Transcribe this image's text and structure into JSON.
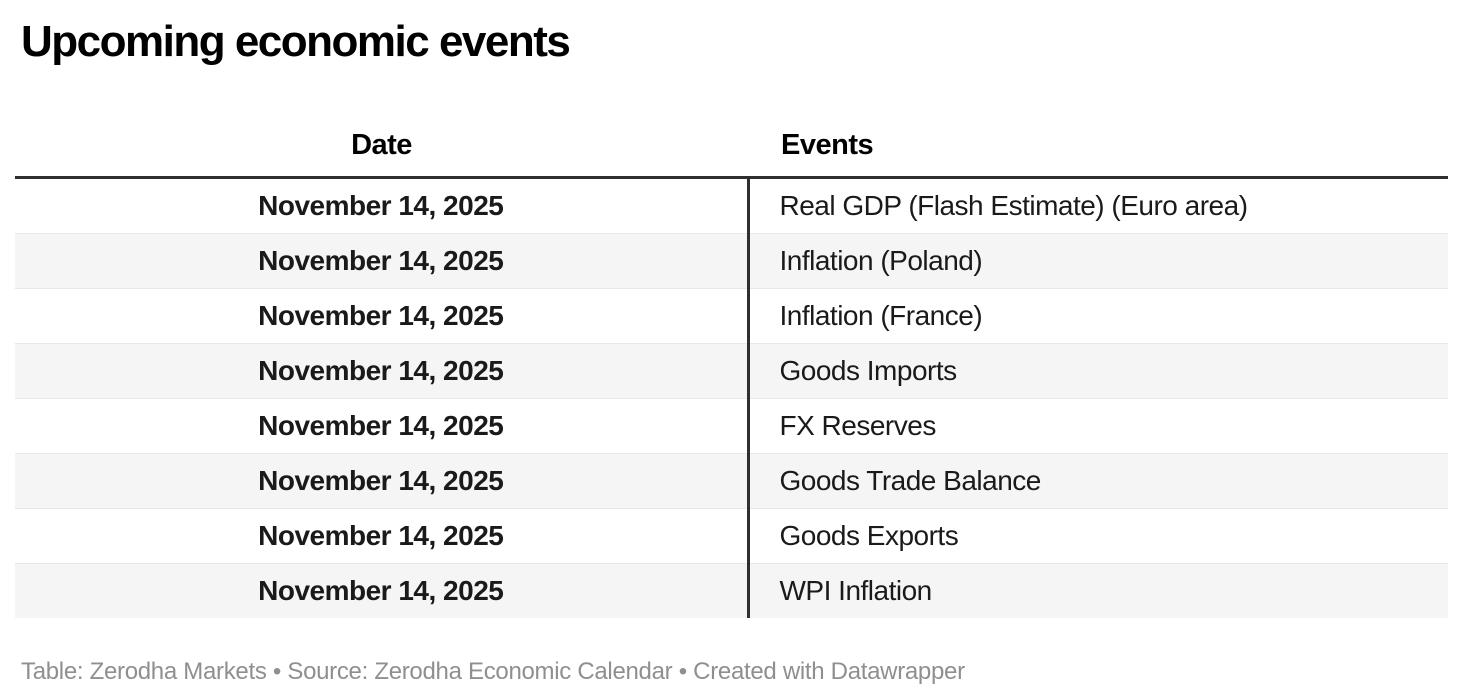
{
  "title": "Upcoming economic events",
  "chart_data": {
    "type": "table",
    "title": "Upcoming economic events",
    "columns": [
      "Date",
      "Events"
    ],
    "rows": [
      [
        "November 14, 2025",
        "Real GDP (Flash Estimate) (Euro area)"
      ],
      [
        "November 14, 2025",
        "Inflation (Poland)"
      ],
      [
        "November 14, 2025",
        "Inflation (France)"
      ],
      [
        "November 14, 2025",
        "Goods Imports"
      ],
      [
        "November 14, 2025",
        "FX Reserves"
      ],
      [
        "November 14, 2025",
        "Goods Trade Balance"
      ],
      [
        "November 14, 2025",
        "Goods Exports"
      ],
      [
        "November 14, 2025",
        "WPI Inflation"
      ]
    ],
    "layout_hints": {
      "date_column_align": "center",
      "events_column_align": "left",
      "striped_rows": true,
      "header_rule": true,
      "column_divider": true
    }
  },
  "footer": {
    "attribution": "Table: Zerodha Markets • Source: Zerodha Economic Calendar • Created with Datawrapper"
  },
  "colors": {
    "accent": "#2f2f2f",
    "stripe": "#f5f5f5",
    "row_border": "#e8e8e8",
    "footer_text": "#8f8f8f",
    "text": "#1a1a1a",
    "title": "#000000"
  }
}
